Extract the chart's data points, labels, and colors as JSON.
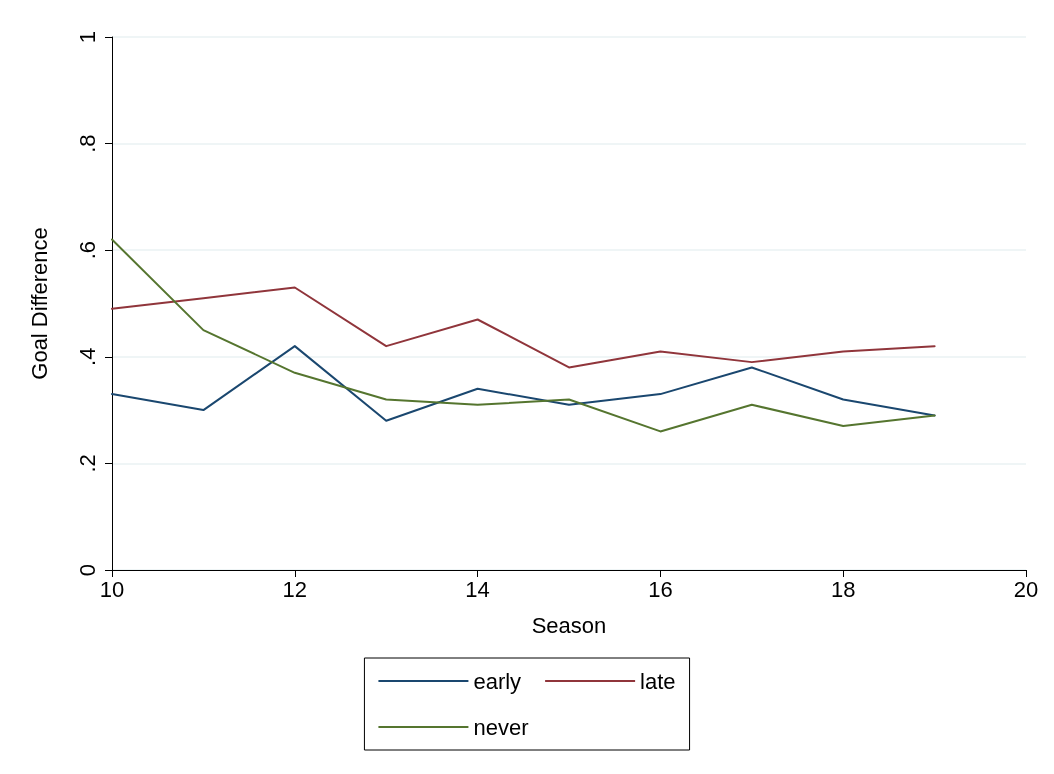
{
  "chart_data": {
    "type": "line",
    "xlabel": "Season",
    "ylabel": "Goal Difference",
    "x": [
      10,
      11,
      12,
      13,
      14,
      15,
      16,
      17,
      18,
      19
    ],
    "series": [
      {
        "name": "early",
        "color": "#1a476f",
        "values": [
          0.33,
          0.3,
          0.42,
          0.28,
          0.34,
          0.31,
          0.33,
          0.38,
          0.32,
          0.29
        ]
      },
      {
        "name": "late",
        "color": "#90353b",
        "values": [
          0.49,
          0.51,
          0.53,
          0.42,
          0.47,
          0.38,
          0.41,
          0.39,
          0.41,
          0.42
        ]
      },
      {
        "name": "never",
        "color": "#55752f",
        "values": [
          0.62,
          0.45,
          0.37,
          0.32,
          0.31,
          0.32,
          0.26,
          0.31,
          0.27,
          0.29
        ]
      }
    ],
    "xlim": [
      10,
      20
    ],
    "xticks": [
      10,
      12,
      14,
      16,
      18,
      20
    ],
    "ylim": [
      0,
      1
    ],
    "yticks": [
      {
        "value": 0,
        "label": "0"
      },
      {
        "value": 0.2,
        "label": ".2"
      },
      {
        "value": 0.4,
        "label": ".4"
      },
      {
        "value": 0.6,
        "label": ".6"
      },
      {
        "value": 0.8,
        "label": ".8"
      },
      {
        "value": 1,
        "label": "1"
      }
    ],
    "grid": "y",
    "legend": "bottom",
    "marker": "none",
    "line_style": "solid"
  }
}
